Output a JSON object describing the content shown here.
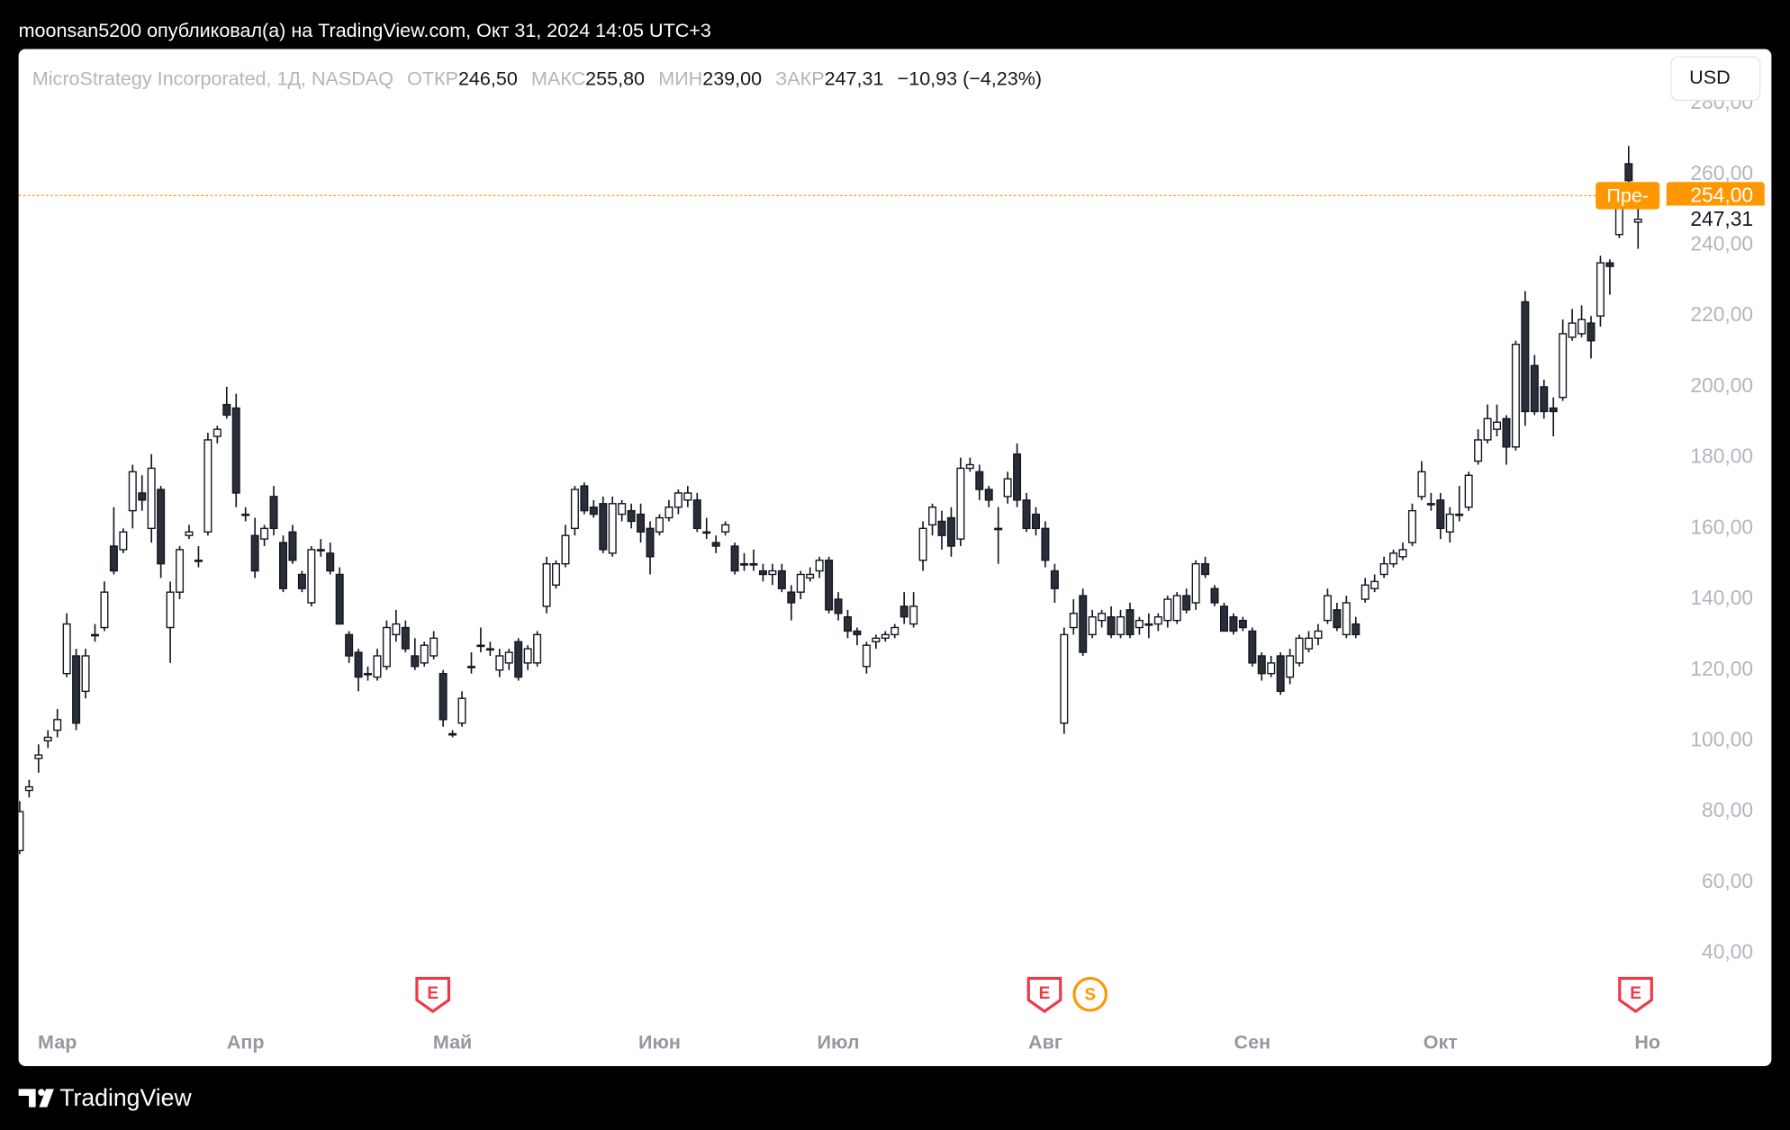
{
  "header": {
    "caption": "moonsan5200 опубликовал(а) на TradingView.com, Окт 31, 2024 14:05 UTC+3"
  },
  "currency": "USD",
  "footer": {
    "brand": "TradingView"
  },
  "chart_data": {
    "type": "candlestick",
    "title": "MicroStrategy Incorporated, 1Д, NASDAQ",
    "legend": {
      "open_label": "ОТКР",
      "open": "246,50",
      "high_label": "МАКС",
      "high": "255,80",
      "low_label": "МИН",
      "low": "239,00",
      "close_label": "ЗАКР",
      "close": "247,31",
      "change": "−10,93 (−4,23%)"
    },
    "categories": [
      null,
      null,
      null,
      null,
      "Мар",
      null,
      null,
      null,
      null,
      null,
      null,
      null,
      null,
      null,
      null,
      null,
      null,
      null,
      null,
      null,
      null,
      null,
      null,
      null,
      "Апр",
      null,
      null,
      null,
      null,
      null,
      null,
      null,
      null,
      null,
      null,
      null,
      null,
      null,
      null,
      null,
      null,
      null,
      null,
      null,
      null,
      null,
      "Май",
      null,
      null,
      null,
      null,
      null,
      null,
      null,
      null,
      null,
      null,
      null,
      null,
      null,
      null,
      null,
      null,
      null,
      null,
      null,
      null,
      null,
      "Июн",
      null,
      null,
      null,
      null,
      null,
      null,
      null,
      null,
      null,
      null,
      null,
      null,
      null,
      null,
      null,
      null,
      null,
      null,
      "Июл",
      null,
      null,
      null,
      null,
      null,
      null,
      null,
      null,
      null,
      null,
      null,
      null,
      null,
      null,
      null,
      null,
      null,
      null,
      null,
      null,
      null,
      "Авг",
      null,
      null,
      null,
      null,
      null,
      null,
      null,
      null,
      null,
      null,
      null,
      null,
      null,
      null,
      null,
      null,
      null,
      null,
      null,
      null,
      null,
      "Сен",
      null,
      null,
      null,
      null,
      null,
      null,
      null,
      null,
      null,
      null,
      null,
      null,
      null,
      null,
      null,
      null,
      null,
      null,
      null,
      "Окт",
      null,
      null,
      null,
      null,
      null,
      null,
      null,
      null,
      null,
      null,
      null,
      null,
      null,
      null,
      null,
      null,
      null,
      null,
      null,
      null,
      null,
      "Но"
    ],
    "ohlc": [
      [
        69,
        83,
        68,
        80
      ],
      [
        86,
        89,
        84,
        87
      ],
      [
        95,
        99,
        91,
        96
      ],
      [
        100,
        103,
        98,
        101
      ],
      [
        103,
        109,
        101,
        106
      ],
      [
        119,
        136,
        118,
        133
      ],
      [
        124,
        126,
        103,
        105
      ],
      [
        114,
        126,
        112,
        124
      ],
      [
        130,
        133,
        128,
        130
      ],
      [
        132,
        145,
        131,
        142
      ],
      [
        155,
        166,
        147,
        148
      ],
      [
        154,
        160,
        153,
        159
      ],
      [
        165,
        178,
        160,
        176
      ],
      [
        170,
        175,
        165,
        168
      ],
      [
        160,
        181,
        156,
        177
      ],
      [
        171,
        172,
        146,
        150
      ],
      [
        132,
        145,
        122,
        142
      ],
      [
        142,
        155,
        140,
        154
      ],
      [
        158,
        161,
        157,
        159
      ],
      [
        151,
        155,
        149,
        151
      ],
      [
        159,
        187,
        158,
        185
      ],
      [
        186,
        189,
        184,
        188
      ],
      [
        195,
        200,
        191,
        192
      ],
      [
        194,
        198,
        166,
        170
      ],
      [
        164,
        166,
        162,
        164
      ],
      [
        158,
        163,
        146,
        148
      ],
      [
        157,
        161,
        155,
        160
      ],
      [
        169,
        172,
        158,
        160
      ],
      [
        156,
        158,
        142,
        143
      ],
      [
        159,
        161,
        150,
        151
      ],
      [
        147,
        148,
        142,
        143
      ],
      [
        139,
        155,
        138,
        154
      ],
      [
        154,
        157,
        152,
        154
      ],
      [
        153,
        156,
        147,
        148
      ],
      [
        147,
        149,
        133,
        133
      ],
      [
        130,
        131,
        122,
        124
      ],
      [
        125,
        126,
        114,
        118
      ],
      [
        119,
        121,
        117,
        119
      ],
      [
        118,
        126,
        117,
        124
      ],
      [
        121,
        134,
        120,
        132
      ],
      [
        130,
        137,
        128,
        133
      ],
      [
        132,
        134,
        125,
        126
      ],
      [
        124,
        129,
        120,
        121
      ],
      [
        122,
        128,
        121,
        127
      ],
      [
        124,
        131,
        123,
        129
      ],
      [
        119,
        120,
        104,
        106
      ],
      [
        102,
        103,
        101,
        102
      ],
      [
        105,
        114,
        104,
        112
      ],
      [
        121,
        125,
        119,
        121
      ],
      [
        127,
        132,
        125,
        127
      ],
      [
        126,
        128,
        124,
        126
      ],
      [
        120,
        126,
        118,
        124
      ],
      [
        122,
        126,
        120,
        125
      ],
      [
        128,
        129,
        117,
        118
      ],
      [
        122,
        127,
        120,
        126
      ],
      [
        122,
        131,
        121,
        130
      ],
      [
        138,
        152,
        136,
        150
      ],
      [
        144,
        151,
        143,
        150
      ],
      [
        150,
        161,
        149,
        158
      ],
      [
        160,
        172,
        158,
        171
      ],
      [
        172,
        173,
        164,
        165
      ],
      [
        166,
        168,
        163,
        164
      ],
      [
        167,
        169,
        153,
        154
      ],
      [
        153,
        169,
        152,
        167
      ],
      [
        164,
        168,
        162,
        167
      ],
      [
        165,
        167,
        160,
        162
      ],
      [
        164,
        167,
        156,
        159
      ],
      [
        160,
        162,
        147,
        152
      ],
      [
        159,
        164,
        158,
        163
      ],
      [
        163,
        168,
        162,
        166
      ],
      [
        166,
        171,
        164,
        170
      ],
      [
        168,
        172,
        166,
        170
      ],
      [
        168,
        170,
        159,
        160
      ],
      [
        159,
        163,
        157,
        159
      ],
      [
        156,
        158,
        153,
        155
      ],
      [
        159,
        162,
        158,
        161
      ],
      [
        155,
        156,
        147,
        148
      ],
      [
        150,
        153,
        148,
        150
      ],
      [
        150,
        154,
        148,
        150
      ],
      [
        148,
        150,
        145,
        147
      ],
      [
        147,
        150,
        144,
        148
      ],
      [
        148,
        150,
        142,
        143
      ],
      [
        142,
        144,
        134,
        139
      ],
      [
        142,
        148,
        140,
        147
      ],
      [
        146,
        149,
        145,
        147
      ],
      [
        148,
        152,
        146,
        151
      ],
      [
        151,
        152,
        136,
        137
      ],
      [
        140,
        142,
        134,
        136
      ],
      [
        135,
        137,
        129,
        131
      ],
      [
        131,
        132,
        127,
        130
      ],
      [
        121,
        128,
        119,
        127
      ],
      [
        128,
        130,
        126,
        129
      ],
      [
        129,
        131,
        128,
        130
      ],
      [
        130,
        133,
        129,
        132
      ],
      [
        138,
        142,
        133,
        135
      ],
      [
        133,
        142,
        132,
        138
      ],
      [
        151,
        162,
        148,
        160
      ],
      [
        161,
        167,
        158,
        166
      ],
      [
        162,
        165,
        154,
        158
      ],
      [
        163,
        166,
        152,
        155
      ],
      [
        157,
        180,
        155,
        177
      ],
      [
        177,
        180,
        176,
        178
      ],
      [
        176,
        178,
        168,
        171
      ],
      [
        171,
        172,
        166,
        168
      ],
      [
        160,
        166,
        150,
        160
      ],
      [
        169,
        176,
        167,
        174
      ],
      [
        181,
        184,
        166,
        168
      ],
      [
        168,
        170,
        159,
        160
      ],
      [
        164,
        166,
        158,
        160
      ],
      [
        160,
        162,
        149,
        151
      ],
      [
        148,
        150,
        139,
        143
      ],
      [
        105,
        132,
        102,
        130
      ],
      [
        132,
        140,
        130,
        136
      ],
      [
        141,
        143,
        124,
        125
      ],
      [
        130,
        137,
        129,
        135
      ],
      [
        134,
        137,
        132,
        136
      ],
      [
        135,
        138,
        129,
        130
      ],
      [
        130,
        137,
        129,
        135
      ],
      [
        137,
        139,
        129,
        130
      ],
      [
        132,
        135,
        130,
        134
      ],
      [
        133,
        136,
        129,
        133
      ],
      [
        133,
        136,
        131,
        135
      ],
      [
        134,
        141,
        132,
        140
      ],
      [
        134,
        142,
        133,
        141
      ],
      [
        141,
        143,
        136,
        137
      ],
      [
        139,
        151,
        137,
        150
      ],
      [
        150,
        152,
        146,
        147
      ],
      [
        143,
        144,
        138,
        139
      ],
      [
        138,
        139,
        131,
        131
      ],
      [
        135,
        136,
        130,
        131
      ],
      [
        134,
        135,
        131,
        132
      ],
      [
        131,
        132,
        121,
        122
      ],
      [
        124,
        125,
        117,
        119
      ],
      [
        119,
        124,
        118,
        122
      ],
      [
        124,
        125,
        113,
        114
      ],
      [
        118,
        126,
        116,
        124
      ],
      [
        122,
        130,
        121,
        129
      ],
      [
        126,
        131,
        125,
        129
      ],
      [
        129,
        133,
        127,
        131
      ],
      [
        134,
        143,
        133,
        141
      ],
      [
        137,
        139,
        131,
        132
      ],
      [
        130,
        141,
        129,
        139
      ],
      [
        133,
        135,
        129,
        130
      ],
      [
        140,
        146,
        139,
        144
      ],
      [
        143,
        147,
        142,
        145
      ],
      [
        147,
        152,
        146,
        150
      ],
      [
        150,
        154,
        149,
        153
      ],
      [
        152,
        156,
        151,
        154
      ],
      [
        156,
        167,
        155,
        165
      ],
      [
        169,
        179,
        168,
        176
      ],
      [
        167,
        170,
        165,
        167
      ],
      [
        168,
        170,
        157,
        160
      ],
      [
        159,
        166,
        156,
        164
      ],
      [
        164,
        172,
        162,
        164
      ],
      [
        166,
        176,
        165,
        175
      ],
      [
        179,
        188,
        178,
        185
      ],
      [
        185,
        195,
        184,
        191
      ],
      [
        188,
        195,
        186,
        190
      ],
      [
        191,
        192,
        178,
        183
      ],
      [
        183,
        213,
        182,
        212
      ],
      [
        224,
        227,
        189,
        193
      ],
      [
        206,
        209,
        192,
        193
      ],
      [
        200,
        202,
        191,
        193
      ],
      [
        194,
        197,
        186,
        193
      ],
      [
        197,
        219,
        196,
        215
      ],
      [
        214,
        222,
        213,
        218
      ],
      [
        215,
        223,
        214,
        219
      ],
      [
        218,
        220,
        208,
        213
      ],
      [
        220,
        237,
        217,
        235
      ],
      [
        235,
        236,
        226,
        234
      ],
      [
        243,
        252,
        242,
        251
      ],
      [
        263,
        268,
        257,
        258.24
      ],
      [
        246.5,
        255.8,
        239,
        247.31
      ],
      null
    ],
    "up_color": "#ffffff",
    "down_color": "#2a2e39",
    "border_color": "#131722",
    "ylim": [
      21,
      295.4
    ],
    "yticks": [
      {
        "value": 40,
        "label": "40,00"
      },
      {
        "value": 60,
        "label": "60,00"
      },
      {
        "value": 80,
        "label": "80,00"
      },
      {
        "value": 100,
        "label": "100,00"
      },
      {
        "value": 120,
        "label": "120,00"
      },
      {
        "value": 140,
        "label": "140,00"
      },
      {
        "value": 160,
        "label": "160,00"
      },
      {
        "value": 180,
        "label": "180,00"
      },
      {
        "value": 200,
        "label": "200,00"
      },
      {
        "value": 220,
        "label": "220,00"
      },
      {
        "value": 240,
        "label": "240,00"
      },
      {
        "value": 260,
        "label": "260,00"
      },
      {
        "value": 280,
        "label": "280,00"
      }
    ],
    "grid": false,
    "premarket": {
      "name": "Пре-",
      "value": 254,
      "label": "254,00",
      "color": "#ff9800"
    },
    "last_price": {
      "value": 247.31,
      "label": "247,31"
    },
    "events": [
      "E",
      "E",
      "S",
      "E"
    ]
  }
}
